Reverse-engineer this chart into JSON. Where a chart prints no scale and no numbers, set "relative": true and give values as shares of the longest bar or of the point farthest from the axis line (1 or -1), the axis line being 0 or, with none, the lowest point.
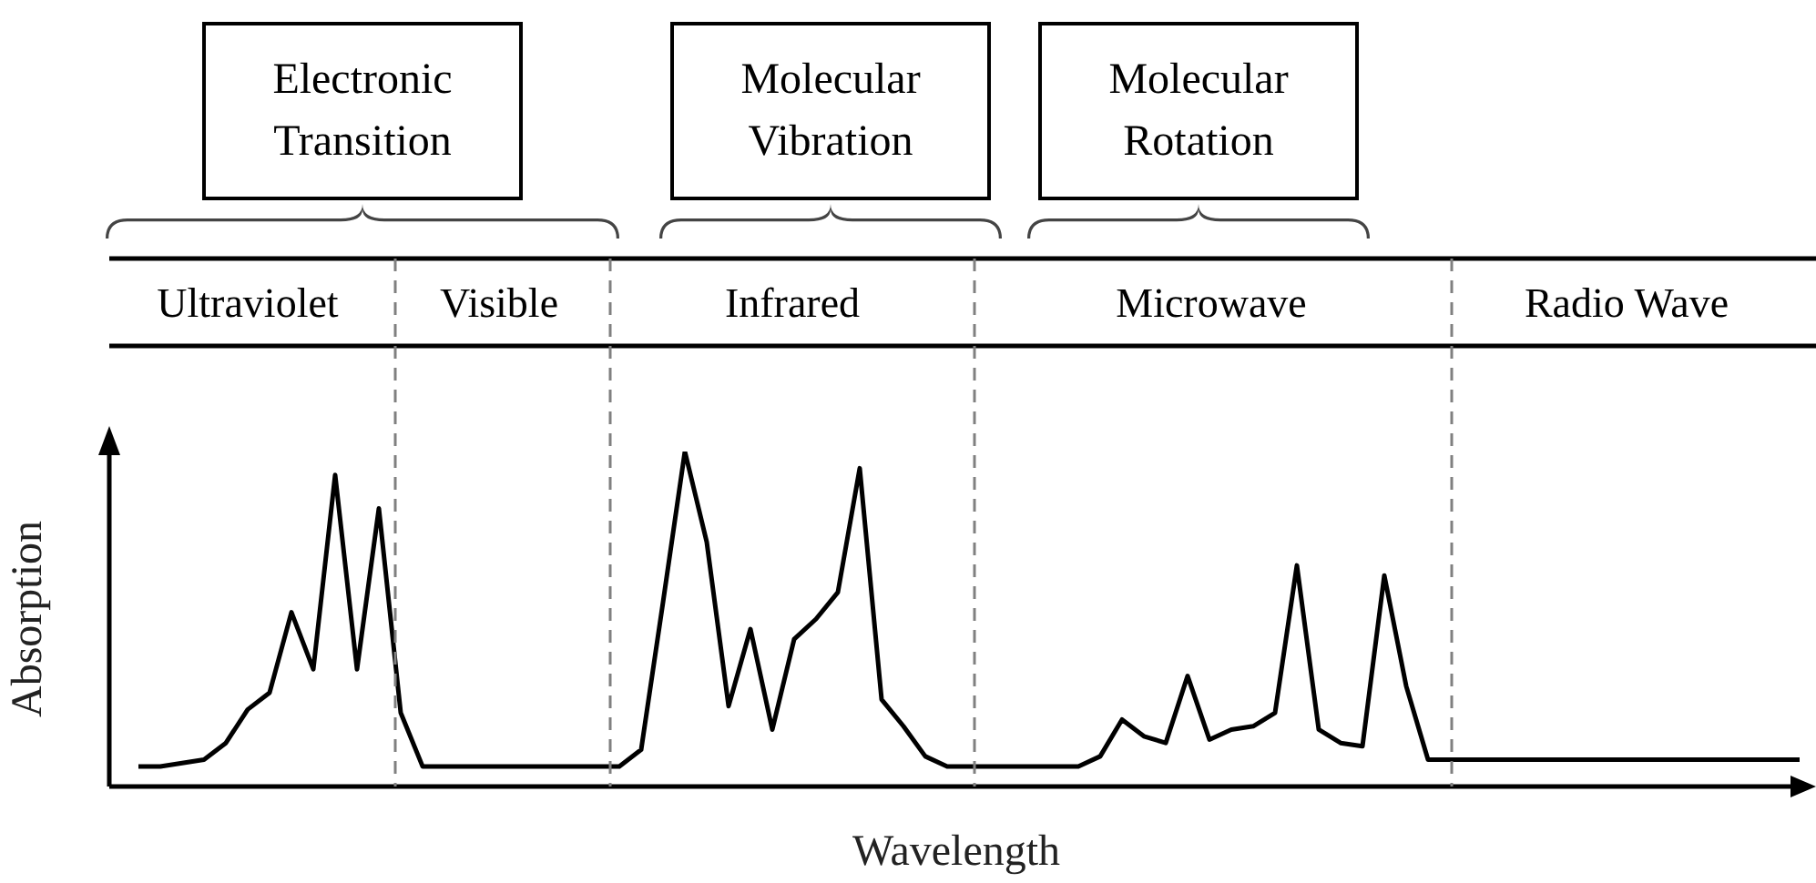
{
  "chart_data": {
    "type": "line",
    "relative": true,
    "xlabel": "Wavelength",
    "ylabel": "Absorption",
    "grid": false,
    "categories": [
      null,
      null,
      null,
      null,
      null,
      null,
      null,
      null,
      null,
      null,
      null,
      null,
      null,
      null,
      null,
      null,
      null,
      null,
      null,
      null,
      null,
      null,
      null,
      null,
      null,
      null,
      null,
      null,
      null,
      null,
      null,
      null,
      null,
      null,
      null,
      null,
      null,
      null,
      null,
      null,
      null,
      null,
      null,
      null,
      null,
      null,
      null,
      null,
      null,
      null,
      null,
      null,
      null,
      null,
      null,
      null,
      null,
      null,
      null,
      null,
      null,
      null,
      null,
      null,
      null,
      null,
      null,
      null,
      null,
      null,
      null,
      null,
      null,
      null,
      null,
      null,
      null
    ],
    "series": [
      {
        "color": "#000000",
        "values": [
          0.06,
          0.06,
          0.07,
          0.08,
          0.13,
          0.23,
          0.28,
          0.52,
          0.35,
          0.93,
          0.35,
          0.83,
          0.22,
          0.06,
          0.06,
          0.06,
          0.06,
          0.06,
          0.06,
          0.06,
          0.06,
          0.06,
          0.06,
          0.11,
          0.55,
          1.0,
          0.73,
          0.24,
          0.47,
          0.17,
          0.44,
          0.5,
          0.58,
          0.95,
          0.26,
          0.18,
          0.09,
          0.06,
          0.06,
          0.06,
          0.06,
          0.06,
          0.06,
          0.06,
          0.09,
          0.2,
          0.15,
          0.13,
          0.33,
          0.14,
          0.17,
          0.18,
          0.22,
          0.66,
          0.17,
          0.13,
          0.12,
          0.63,
          0.3,
          0.08,
          0.08,
          0.08,
          0.08,
          0.08,
          0.08,
          0.08,
          0.08,
          0.08,
          0.08,
          0.08,
          0.08,
          0.08,
          0.08,
          0.08,
          0.08,
          0.08,
          0.08
        ]
      }
    ],
    "annotations": [
      "Electronic Transition",
      "Molecular Vibration",
      "Molecular Rotation",
      "Ultraviolet",
      "Visible",
      "Infrared",
      "Microwave",
      "Radio Wave"
    ]
  }
}
